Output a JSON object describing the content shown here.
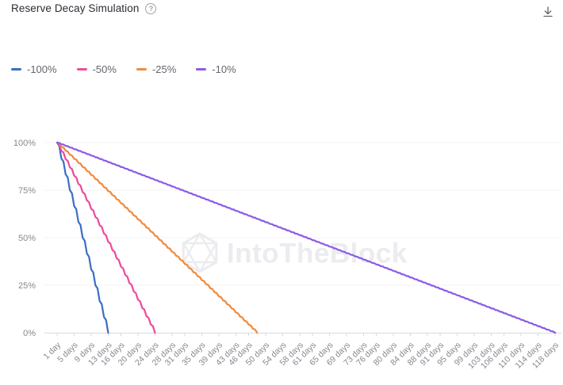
{
  "header": {
    "title": "Reserve Decay Simulation",
    "help_icon": {
      "glyph": "?",
      "name": "help-icon"
    },
    "download_icon": {
      "name": "download-icon"
    }
  },
  "watermark": {
    "text": "IntoTheBlock",
    "logo": "intotheblock-hexagon-logo",
    "color": "#ececf0"
  },
  "colors": {
    "grid": "#f3f3f5",
    "axis_line": "#dddee2",
    "tick": "#d6d7db",
    "axis_text": "#85888e",
    "legend_text": "#63676e",
    "title_text": "#2a2e34",
    "icon_gray": "#5f6368"
  },
  "chart_data": {
    "type": "line",
    "title": "Reserve Decay Simulation",
    "xlabel": "",
    "ylabel": "",
    "grid": "horizontal",
    "legend_position": "top-left",
    "x_axis": {
      "unit": "days",
      "range_days": [
        1,
        118
      ],
      "tick_days": [
        1,
        5,
        9,
        13,
        16,
        20,
        24,
        28,
        31,
        35,
        39,
        43,
        46,
        50,
        54,
        58,
        61,
        65,
        69,
        73,
        76,
        80,
        84,
        88,
        91,
        95,
        99,
        103,
        106,
        110,
        114,
        118
      ],
      "tick_labels": [
        "1 day",
        "5 days",
        "9 days",
        "13 days",
        "16 days",
        "20 days",
        "24 days",
        "28 days",
        "31 days",
        "35 days",
        "39 days",
        "43 days",
        "46 days",
        "50 days",
        "54 days",
        "58 days",
        "61 days",
        "65 days",
        "69 days",
        "73 days",
        "76 days",
        "80 days",
        "84 days",
        "88 days",
        "91 days",
        "95 days",
        "99 days",
        "103 days",
        "106 days",
        "110 days",
        "114 days",
        "118 days"
      ]
    },
    "y_axis": {
      "format": "percent",
      "range": [
        0,
        100
      ],
      "tick_labels": [
        "0%",
        "25%",
        "50%",
        "75%",
        "100%"
      ],
      "tick_values": [
        0,
        25,
        50,
        75,
        100
      ]
    },
    "series": [
      {
        "name": "-100%",
        "color": "#3e6ec5",
        "shape": "linear-decay",
        "start_day": 1,
        "start_value_pct": 100,
        "zero_day": 13
      },
      {
        "name": "-50%",
        "color": "#ee4c9b",
        "shape": "linear-decay",
        "start_day": 1,
        "start_value_pct": 100,
        "zero_day": 24
      },
      {
        "name": "-25%",
        "color": "#f28a3d",
        "shape": "linear-decay",
        "start_day": 1,
        "start_value_pct": 100,
        "zero_day": 48
      },
      {
        "name": "-10%",
        "color": "#8b5ce6",
        "shape": "linear-decay",
        "start_day": 1,
        "start_value_pct": 100,
        "zero_day": 118
      }
    ]
  }
}
